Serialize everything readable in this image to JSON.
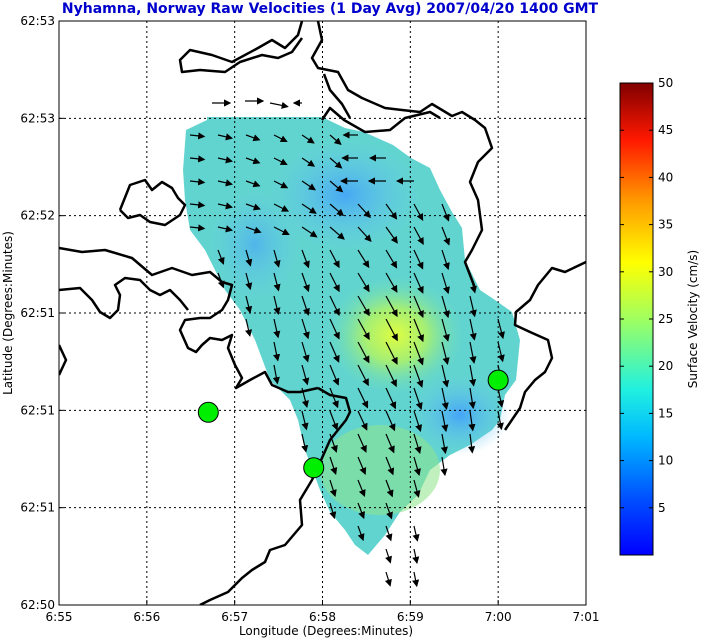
{
  "chart_data": {
    "type": "vector-field",
    "title": "Nyhamna, Norway Raw Velocities (1 Day Avg) 2007/04/20 1400 GMT",
    "xlabel": "Longitude (Degrees:Minutes)",
    "ylabel": "Latitude (Degrees:Minutes)",
    "x_ticks": [
      "6:55",
      "6:56",
      "6:57",
      "6:58",
      "6:59",
      "7:00",
      "7:01"
    ],
    "y_ticks": [
      "62:53",
      "62:53",
      "62:52",
      "62:51",
      "62:51",
      "62:51",
      "62:50"
    ],
    "colorbar": {
      "label": "Surface Velocity (cm/s)",
      "ticks": [
        "5",
        "10",
        "15",
        "20",
        "25",
        "30",
        "35",
        "40",
        "45",
        "50"
      ],
      "range": [
        0,
        50
      ]
    },
    "grid": true,
    "sites": [
      {
        "lon_min": 56.7,
        "lat_frac": 0.33
      },
      {
        "lon_min": 57.9,
        "lat_frac": 0.235
      },
      {
        "lon_min": 60.0,
        "lat_frac": 0.385
      }
    ]
  },
  "colors": {
    "title": "#0000cc",
    "site_fill": "#00ee00",
    "land_line": "#000000",
    "field_low": "#3aa6ff",
    "field_mid": "#60d8c8",
    "field_high": "#d8ff40"
  }
}
